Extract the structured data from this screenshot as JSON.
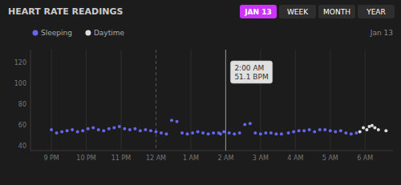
{
  "chart_data": {
    "type": "scatter",
    "title": "HEART RATE READINGS",
    "subtitle": "Jan 13",
    "tabs": {
      "labels": [
        "JAN 13",
        "WEEK",
        "MONTH",
        "YEAR"
      ],
      "active": "JAN 13",
      "active_color": "#cc33ff"
    },
    "legend": "top-left",
    "grid": "x",
    "xlim": [
      -7.6,
      2.8
    ],
    "ylim": [
      35,
      132
    ],
    "xticks": [
      {
        "value": -7,
        "label": "9 PM"
      },
      {
        "value": -6,
        "label": "10 PM"
      },
      {
        "value": -5,
        "label": "11 PM"
      },
      {
        "value": -4,
        "label": "12 AM"
      },
      {
        "value": -3,
        "label": "1 AM"
      },
      {
        "value": -2,
        "label": "2 AM"
      },
      {
        "value": -1,
        "label": "3 AM"
      },
      {
        "value": 0,
        "label": "4 AM"
      },
      {
        "value": 1,
        "label": "5 AM"
      },
      {
        "value": 2,
        "label": "6 AM"
      }
    ],
    "yticks": [
      40,
      60,
      80,
      100,
      120
    ],
    "vlines": [
      {
        "x": -4,
        "line_style": "dashed"
      },
      {
        "x": -2,
        "line_style": "solid"
      }
    ],
    "annotations": [
      {
        "x": -2,
        "lines": [
          "2:00 AM",
          "51.1 BPM"
        ]
      }
    ],
    "series": [
      {
        "name": "Sleeping",
        "color": "#6666ee",
        "marker": "circle",
        "x": [
          -7.0,
          -6.85,
          -6.7,
          -6.55,
          -6.4,
          -6.25,
          -6.1,
          -5.95,
          -5.8,
          -5.65,
          -5.5,
          -5.35,
          -5.2,
          -5.05,
          -4.9,
          -4.75,
          -4.6,
          -4.45,
          -4.3,
          -4.15,
          -4.0,
          -3.85,
          -3.7,
          -3.55,
          -3.4,
          -3.25,
          -3.1,
          -2.95,
          -2.8,
          -2.65,
          -2.5,
          -2.35,
          -2.2,
          -2.05,
          -1.9,
          -1.75,
          -1.6,
          -1.45,
          -1.3,
          -1.15,
          -1.0,
          -0.85,
          -0.7,
          -0.55,
          -0.4,
          -0.2,
          -0.05,
          0.1,
          0.25,
          0.4,
          0.55,
          0.7,
          0.85,
          1.0,
          1.15,
          1.3,
          1.45,
          1.6,
          1.75,
          -2.15
        ],
        "values": [
          55,
          52,
          53,
          54,
          55,
          53,
          54,
          56,
          57,
          55,
          54,
          56,
          57,
          58,
          56,
          55,
          56,
          54,
          55,
          54,
          53,
          52,
          51,
          64,
          63,
          52,
          51,
          52,
          53,
          52,
          51,
          52,
          52,
          53,
          52,
          51,
          52,
          60,
          61,
          52,
          51,
          52,
          52,
          51,
          51,
          52,
          53,
          54,
          54,
          55,
          53,
          55,
          55,
          54,
          53,
          54,
          52,
          51,
          52,
          51
        ]
      },
      {
        "name": "Daytime",
        "color": "#dddddd",
        "marker": "circle",
        "x": [
          1.85,
          1.95,
          2.05,
          2.12,
          2.2,
          2.28,
          2.38,
          2.6
        ],
        "values": [
          53,
          57,
          55,
          58,
          59,
          57,
          55,
          54
        ]
      }
    ]
  }
}
